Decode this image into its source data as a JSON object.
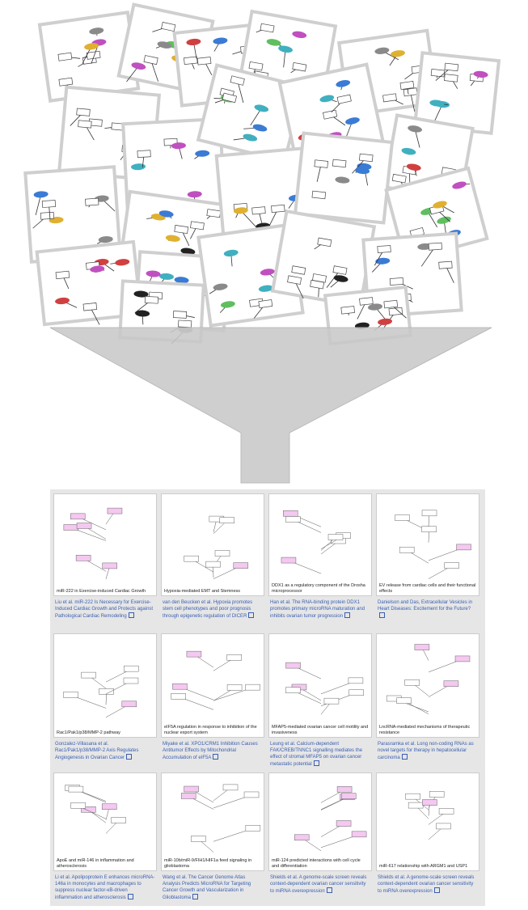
{
  "cards": [
    {
      "caption": "miR-222 in Exercise-induced Cardiac Growth",
      "citation": "Liu et al. miR-222 Is Necessary for Exercise-Induced Cardiac Growth and Protects against Pathological Cardiac Remodeling"
    },
    {
      "caption": "Hypoxia-mediated EMT and Stemness",
      "citation": "van den Beucken et al. Hypoxia promotes stem cell phenotypes and poor prognosis through epigenetic regulation of DICER"
    },
    {
      "caption": "DDX1 as a regulatory component of the Drosha microprocessor",
      "citation": "Han et al. The RNA-binding protein DDX1 promotes primary microRNA maturation and inhibits ovarian tumor progression"
    },
    {
      "caption": "EV release from cardiac cells and their functional effects",
      "citation": "Danielson and Das, Extracellular Vesicles in Heart Diseases: Excitement for the Future?"
    },
    {
      "caption": "Rac1/Pak1/p38/MMP-2 pathway",
      "citation": "Gonzalez-Villasana et al. Rac1/Pak1/p38/MMP-2 Axis Regulates Angiogenesis in Ovarian Cancer"
    },
    {
      "caption": "eIF5A regulation in response to inhibition of the nuclear export system",
      "citation": "Miyake et al. XPO1/CRM1 Inhibition Causes Antitumor Effects by Mitochondrial Accumulation of eIF5A"
    },
    {
      "caption": "MFAP5-mediated ovarian cancer cell motility and invasiveness",
      "citation": "Leung et al. Calcium-dependent FAK/CREB/TNNC1 signalling mediates the effect of stromal MFAP5 on ovarian cancer metastatic potential"
    },
    {
      "caption": "LncRNA-mediated mechanisms of therapeutic resistance",
      "citation": "Parasramka et al. Long non-coding RNAs as novel targets for therapy in hepatocellular carcinoma"
    },
    {
      "caption": "ApoE and miR-146 in inflammation and atherosclerosis",
      "citation": "Li et al. Apolipoprotein E enhances microRNA-146a in monocytes and macrophages to suppress nuclear factor-κB-driven inflammation and atherosclerosis"
    },
    {
      "caption": "miR-10b/miR-9/FIH1/HIF1a feed signaling in glioblastoma",
      "citation": "Wang et al. The Cancer Genome Atlas Analysis Predicts MicroRNA for Targeting Cancer Growth and Vascularization in Glioblastoma"
    },
    {
      "caption": "miR-124 predicted interactions with cell cycle and differentiation",
      "citation": "Shields et al. A genome-scale screen reveals context-dependent ovarian cancer sensitivity to miRNA overexpression"
    },
    {
      "caption": "miR-617 relationship with ARGM1 and USP1",
      "citation": "Shields et al. A genome-scale screen reveals context-dependent ovarian cancer sensitivity to miRNA overexpression"
    }
  ]
}
